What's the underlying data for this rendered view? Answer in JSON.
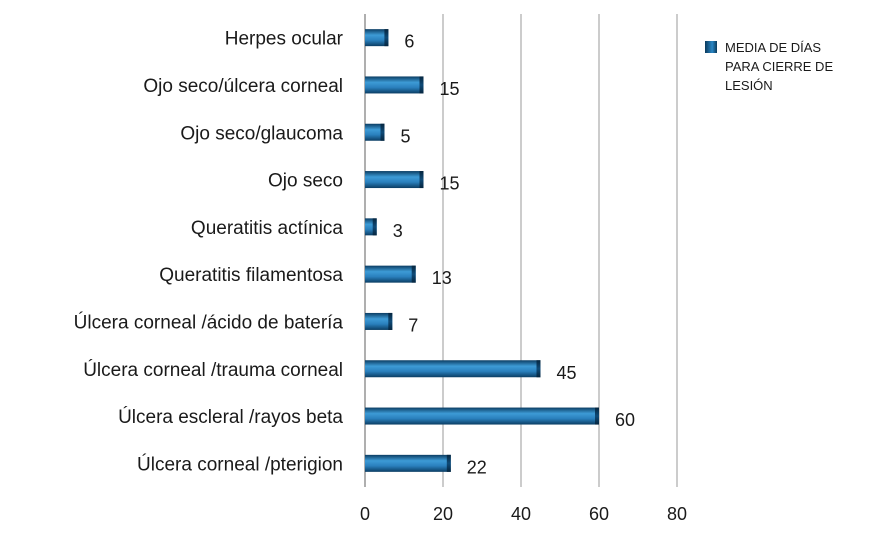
{
  "chart_data": {
    "type": "bar",
    "orientation": "horizontal",
    "categories": [
      "Herpes ocular",
      "Ojo seco/úlcera corneal",
      "Ojo seco/glaucoma",
      "Ojo seco",
      "Queratitis actínica",
      "Queratitis filamentosa",
      "Úlcera corneal /ácido de batería",
      "Úlcera corneal /trauma corneal",
      "Úlcera escleral /rayos beta",
      "Úlcera corneal /pterigion"
    ],
    "series": [
      {
        "name": "MEDIA DE DÍAS PARA CIERRE DE LESIÓN",
        "values": [
          6,
          15,
          5,
          15,
          3,
          13,
          7,
          45,
          60,
          22
        ],
        "color": "#1f7ab8"
      }
    ],
    "data_labels": [
      "6",
      "15",
      "5",
      "15",
      "3",
      "13",
      "7",
      "45",
      "60",
      "22"
    ],
    "xlim": [
      0,
      80
    ],
    "x_ticks": [
      "0",
      "20",
      "40",
      "60",
      "80"
    ],
    "grid": "vertical",
    "legend_position": "right-top"
  }
}
